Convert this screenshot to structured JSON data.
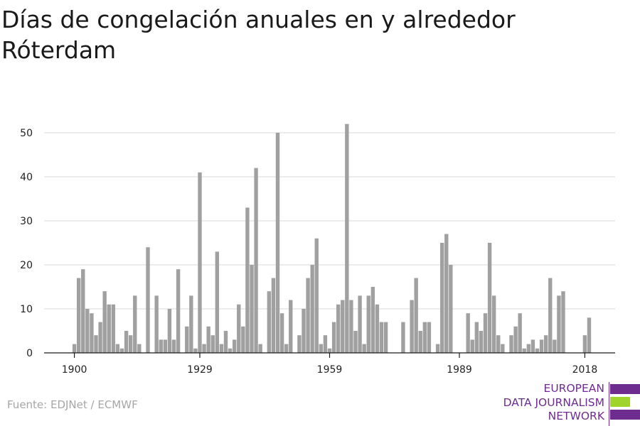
{
  "header": {
    "title": "Días de congelación anuales en y alrededor Róterdam"
  },
  "footer": {
    "source": "Fuente: EDJNet / ECMWF"
  },
  "logo": {
    "lines": [
      "EUROPEAN",
      "DATA JOURNALISM",
      "NETWORK"
    ],
    "colors": {
      "purple": "#6e2c8f",
      "green": "#9fd42c"
    }
  },
  "chart_data": {
    "type": "bar",
    "title": "Días de congelación anuales en y alrededor Róterdam",
    "xlabel": "",
    "ylabel": "",
    "bar_color": "#a0a0a0",
    "grid_color": "#d9d9d9",
    "grid": true,
    "ylim": [
      0,
      55
    ],
    "y_ticks": [
      0,
      10,
      20,
      30,
      40,
      50
    ],
    "x_ticks": [
      1900,
      1929,
      1959,
      1989,
      2018
    ],
    "x_range": [
      1893,
      2025
    ],
    "x": [
      1900,
      1901,
      1902,
      1903,
      1904,
      1905,
      1906,
      1907,
      1908,
      1909,
      1910,
      1911,
      1912,
      1913,
      1914,
      1915,
      1916,
      1917,
      1918,
      1919,
      1920,
      1921,
      1922,
      1923,
      1924,
      1925,
      1926,
      1927,
      1928,
      1929,
      1930,
      1931,
      1932,
      1933,
      1934,
      1935,
      1936,
      1937,
      1938,
      1939,
      1940,
      1941,
      1942,
      1943,
      1944,
      1945,
      1946,
      1947,
      1948,
      1949,
      1950,
      1951,
      1952,
      1953,
      1954,
      1955,
      1956,
      1957,
      1958,
      1959,
      1960,
      1961,
      1962,
      1963,
      1964,
      1965,
      1966,
      1967,
      1968,
      1969,
      1970,
      1971,
      1972,
      1973,
      1974,
      1975,
      1976,
      1977,
      1978,
      1979,
      1980,
      1981,
      1982,
      1983,
      1984,
      1985,
      1986,
      1987,
      1988,
      1989,
      1990,
      1991,
      1992,
      1993,
      1994,
      1995,
      1996,
      1997,
      1998,
      1999,
      2000,
      2001,
      2002,
      2003,
      2004,
      2005,
      2006,
      2007,
      2008,
      2009,
      2010,
      2011,
      2012,
      2013,
      2014,
      2015,
      2016,
      2017,
      2018,
      2019
    ],
    "values": [
      2,
      17,
      19,
      10,
      9,
      4,
      7,
      14,
      11,
      11,
      2,
      1,
      5,
      4,
      13,
      2,
      0,
      24,
      0,
      13,
      3,
      3,
      10,
      3,
      19,
      0,
      6,
      13,
      1,
      41,
      2,
      6,
      4,
      23,
      2,
      5,
      1,
      3,
      11,
      6,
      33,
      20,
      42,
      2,
      0,
      14,
      17,
      50,
      9,
      2,
      12,
      0,
      4,
      10,
      17,
      20,
      26,
      2,
      4,
      1,
      7,
      11,
      12,
      52,
      12,
      5,
      13,
      2,
      13,
      15,
      11,
      7,
      7,
      0,
      0,
      0,
      7,
      0,
      12,
      17,
      5,
      7,
      7,
      0,
      2,
      25,
      27,
      20,
      0,
      0,
      0,
      9,
      3,
      7,
      5,
      9,
      25,
      13,
      4,
      2,
      0,
      4,
      6,
      9,
      1,
      2,
      3,
      1,
      3,
      4,
      17,
      3,
      13,
      14,
      0,
      0,
      0,
      0,
      4,
      8
    ]
  }
}
